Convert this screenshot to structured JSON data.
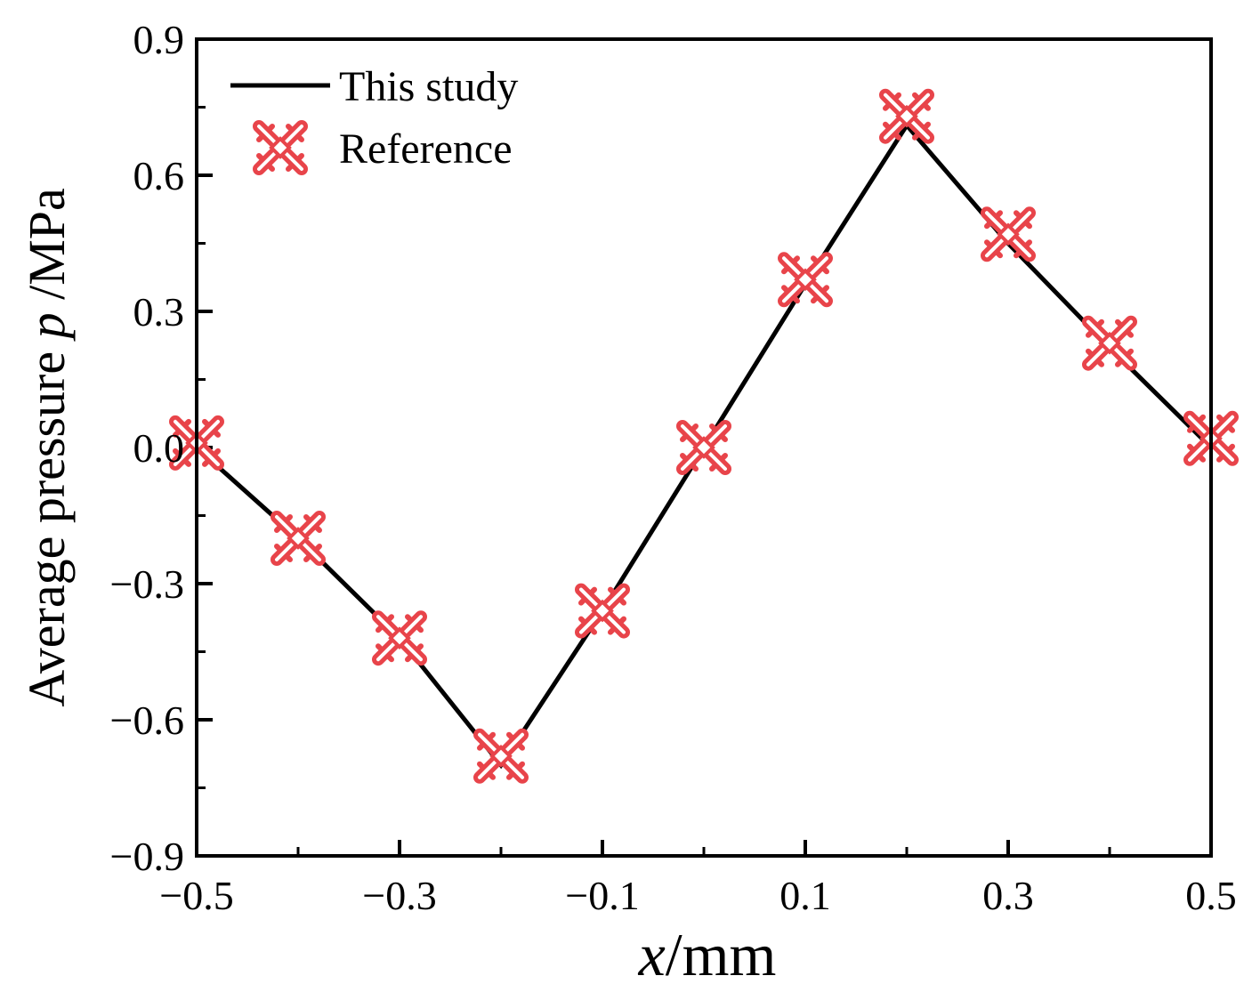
{
  "chart_data": {
    "type": "line",
    "xlabel": {
      "var": "x",
      "unit": "/mm"
    },
    "ylabel": {
      "prefix": "Average pressure ",
      "var": "p",
      "unit": " /MPa"
    },
    "xlim": [
      -0.5,
      0.5
    ],
    "ylim": [
      -0.9,
      0.9
    ],
    "xticks": [
      -0.5,
      -0.3,
      -0.1,
      0.1,
      0.3,
      0.5
    ],
    "yticks": [
      0.9,
      0.6,
      0.3,
      0.0,
      -0.3,
      -0.6,
      -0.9
    ],
    "xtick_labels": [
      "−0.5",
      "−0.3",
      "−0.1",
      "0.1",
      "0.3",
      "0.5"
    ],
    "ytick_labels": [
      "0.9",
      "0.6",
      "0.3",
      "0.0",
      "−0.3",
      "−0.6",
      "−0.9"
    ],
    "legend_position": "top-left",
    "series": [
      {
        "name": "This study",
        "style": "line",
        "color": "#000000",
        "x": [
          -0.5,
          -0.4,
          -0.3,
          -0.2,
          -0.1,
          0.0,
          0.1,
          0.2,
          0.3,
          0.4,
          0.5
        ],
        "y": [
          0.0,
          -0.2,
          -0.42,
          -0.7,
          -0.36,
          0.0,
          0.36,
          0.71,
          0.45,
          0.22,
          0.0
        ]
      },
      {
        "name": "Reference",
        "style": "marker",
        "marker": "crossed-x",
        "color": "#e8444a",
        "x": [
          -0.5,
          -0.4,
          -0.3,
          -0.2,
          -0.1,
          0.0,
          0.1,
          0.2,
          0.3,
          0.4,
          0.5
        ],
        "y": [
          0.01,
          -0.2,
          -0.42,
          -0.68,
          -0.36,
          0.0,
          0.37,
          0.73,
          0.47,
          0.23,
          0.02
        ]
      }
    ]
  }
}
